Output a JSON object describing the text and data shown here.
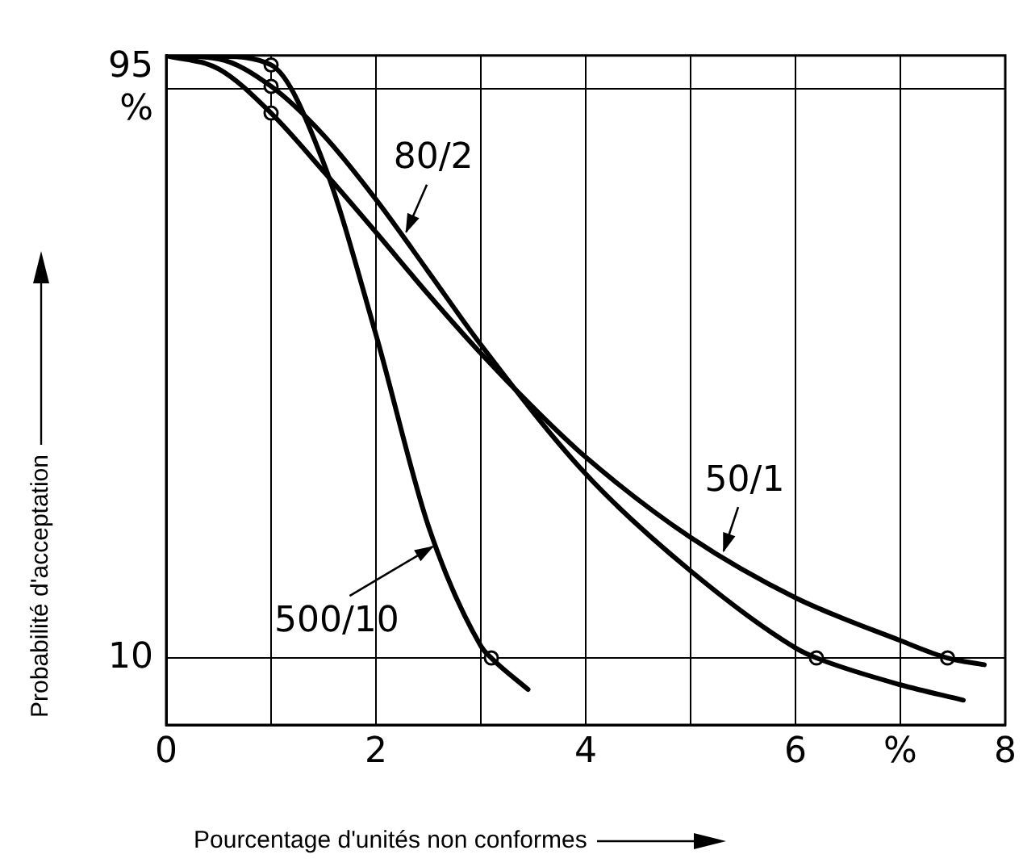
{
  "chart_data": {
    "type": "line",
    "xlabel": "Pourcentage d'unités non conformes",
    "ylabel": "Probabilité d'acceptation",
    "xlim": [
      0,
      8
    ],
    "xticks": [
      0,
      {
        "value": 1,
        "label": null
      },
      2,
      {
        "value": 3,
        "label": null
      },
      4,
      {
        "value": 5,
        "label": null
      },
      6,
      {
        "value": 7,
        "label": "%"
      },
      8
    ],
    "ylim": [
      0,
      100
    ],
    "yticks": [
      10,
      {
        "value": 95,
        "label": "95\n%"
      }
    ],
    "grid": true,
    "legend": false,
    "marker": "none",
    "line_style": "solid",
    "series": [
      {
        "color": "#000000",
        "x": [
          0,
          0.5,
          1,
          1.5,
          2,
          2.5,
          3,
          3.5,
          4,
          5,
          6,
          7,
          7.45,
          7.8
        ],
        "values": [
          100,
          98,
          91.4,
          82.7,
          73.6,
          64.3,
          55.5,
          47.4,
          40,
          28,
          19,
          12.6,
          10,
          9
        ]
      },
      {
        "color": "#000000",
        "x": [
          0,
          0.5,
          1,
          1.5,
          2,
          2.5,
          3,
          4,
          5,
          6,
          6.2,
          7,
          7.6
        ],
        "values": [
          100,
          99.5,
          95.4,
          88.1,
          78.5,
          67.7,
          56.8,
          37.5,
          23,
          11.5,
          10,
          6,
          3.7
        ]
      },
      {
        "color": "#000000",
        "x": [
          0,
          0.5,
          1,
          1.5,
          2,
          2.5,
          3,
          3.1,
          3.45
        ],
        "values": [
          100,
          99.9,
          98.6,
          84,
          58.3,
          29.7,
          11.8,
          10,
          5.3
        ]
      },
      {
        "type": "scatter",
        "marker": "circle",
        "color": "#000000",
        "x": [
          1,
          1,
          1,
          3.1,
          6.2,
          7.45
        ],
        "values": [
          98.6,
          95.4,
          91.4,
          10,
          10,
          10
        ]
      }
    ],
    "annotations": [
      {
        "text": "80/2",
        "x": 2.27,
        "y": 73
      },
      {
        "text": "50/1",
        "x": 5.3,
        "y": 25.3
      },
      {
        "text": "500/10",
        "x": 2.58,
        "y": 27
      }
    ]
  }
}
